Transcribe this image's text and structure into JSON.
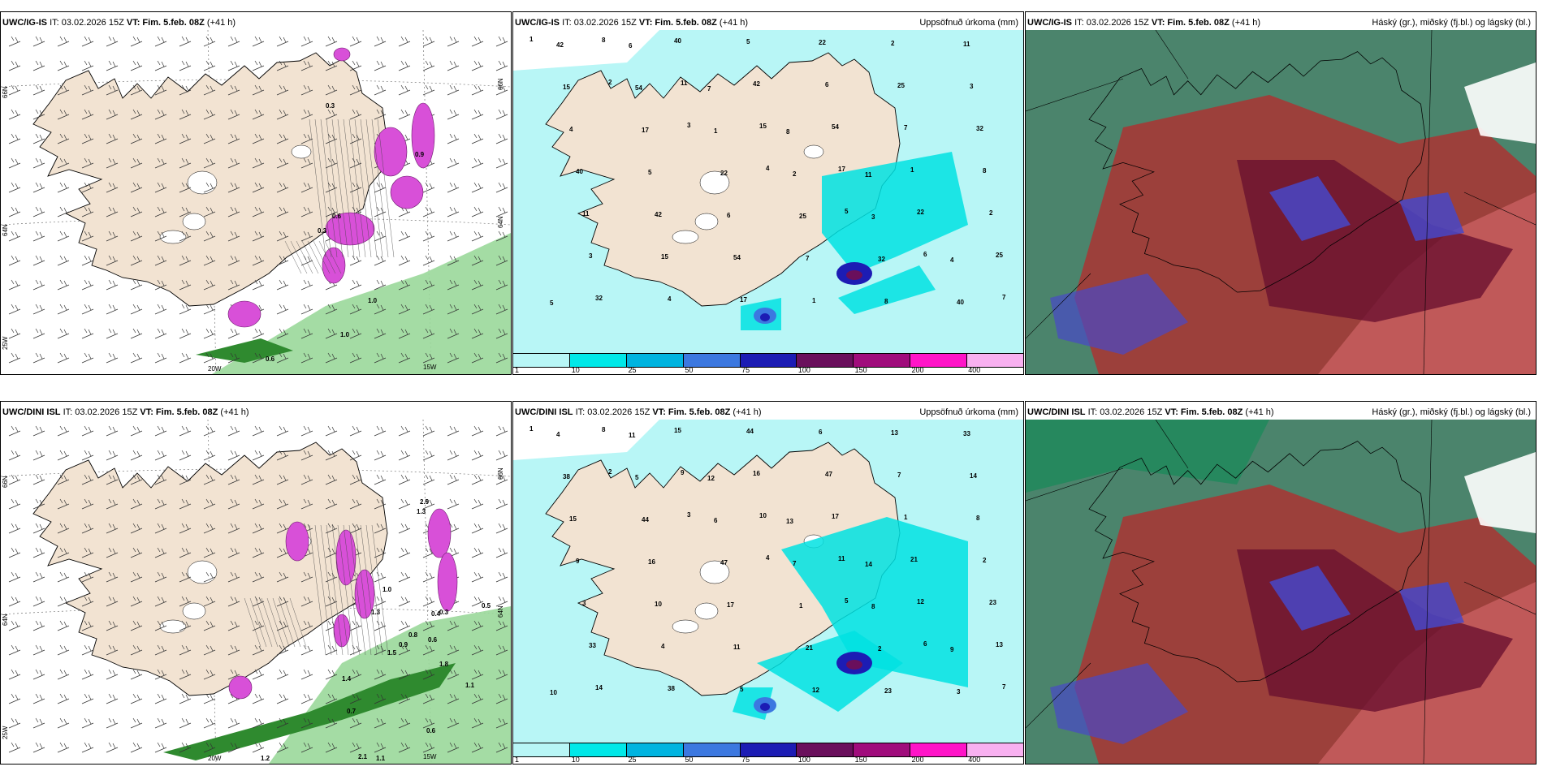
{
  "panels": [
    {
      "id": "top-left",
      "model": "UWC/IG-IS",
      "it": "IT: 03.02.2026 15Z",
      "vt_label": "VT:",
      "vt": "Fim. 5.feb. 08Z",
      "lead": "(+41 h)",
      "right_label": "",
      "lon_labels": [
        "20W",
        "15W"
      ],
      "lat_labels": [
        "66N",
        "64N",
        "25W",
        "66N",
        "64N"
      ],
      "values": [
        "0.3",
        "0.6",
        "1.0",
        "1.0",
        "0.6",
        "0.3",
        "0.9"
      ]
    },
    {
      "id": "top-middle",
      "model": "UWC/IG-IS",
      "it": "IT: 03.02.2026 15Z",
      "vt_label": "VT:",
      "vt": "Fim. 5.feb. 08Z",
      "lead": "(+41 h)",
      "right_label": "Uppsöfnuð úrkoma (mm)",
      "values": [
        "1",
        "2",
        "3",
        "4",
        "5",
        "6",
        "7",
        "8",
        "11",
        "15",
        "17",
        "22",
        "25",
        "32",
        "40",
        "42",
        "54"
      ]
    },
    {
      "id": "top-right",
      "model": "UWC/IG-IS",
      "it": "IT: 03.02.2026 15Z",
      "vt_label": "VT:",
      "vt": "Fim. 5.feb. 08Z",
      "lead": "(+41 h)",
      "right_label": "Háský (gr.), miðský (fj.bl.) og lágský (bl.)"
    },
    {
      "id": "bottom-left",
      "model": "UWC/DINI ISL",
      "it": "IT: 03.02.2026 15Z",
      "vt_label": "VT:",
      "vt": "Fim. 5.feb. 08Z",
      "lead": "(+41 h)",
      "right_label": "",
      "lon_labels": [
        "20W",
        "15W"
      ],
      "lat_labels": [
        "66N",
        "64N",
        "25W",
        "66N",
        "64N"
      ],
      "values": [
        "2.9",
        "1.3",
        "1.0",
        "0.8",
        "0.9",
        "0.6",
        "1.8",
        "1.1",
        "1.3",
        "1.5",
        "0.5",
        "0.7",
        "1.4",
        "1.2",
        "2.1",
        "1.1",
        "0.6",
        "0.4",
        "0.3"
      ]
    },
    {
      "id": "bottom-middle",
      "model": "UWC/DINI ISL",
      "it": "IT: 03.02.2026 15Z",
      "vt_label": "VT:",
      "vt": "Fim. 5.feb. 08Z",
      "lead": "(+41 h)",
      "right_label": "Uppsöfnuð úrkoma (mm)",
      "values": [
        "1",
        "2",
        "3",
        "4",
        "5",
        "6",
        "7",
        "8",
        "9",
        "10",
        "11",
        "12",
        "13",
        "14",
        "15",
        "16",
        "17",
        "21",
        "23",
        "33",
        "38",
        "44",
        "47"
      ]
    },
    {
      "id": "bottom-right",
      "model": "UWC/DINI ISL",
      "it": "IT: 03.02.2026 15Z",
      "vt_label": "VT:",
      "vt": "Fim. 5.feb. 08Z",
      "lead": "(+41 h)",
      "right_label": "Háský (gr.), miðský (fj.bl.) og lágský (bl.)"
    }
  ],
  "legend": {
    "ticks": [
      "1",
      "10",
      "25",
      "50",
      "75",
      "100",
      "150",
      "200",
      "400"
    ],
    "colors": [
      "#b8f6f6",
      "#00e8e8",
      "#00b4e0",
      "#3c78e0",
      "#1c1cb4",
      "#6a0f5c",
      "#a00c7c",
      "#ff14c8",
      "#f8b0f0"
    ]
  },
  "colors": {
    "land": "#f2e3d2",
    "sea_precip_light": "#b8f6f6",
    "cloud_high": "#2b6f52",
    "cloud_mid": "#b03030",
    "cloud_low": "#4848c8",
    "snow_magenta": "#d850d8",
    "rain_green": "#5ab05a"
  }
}
